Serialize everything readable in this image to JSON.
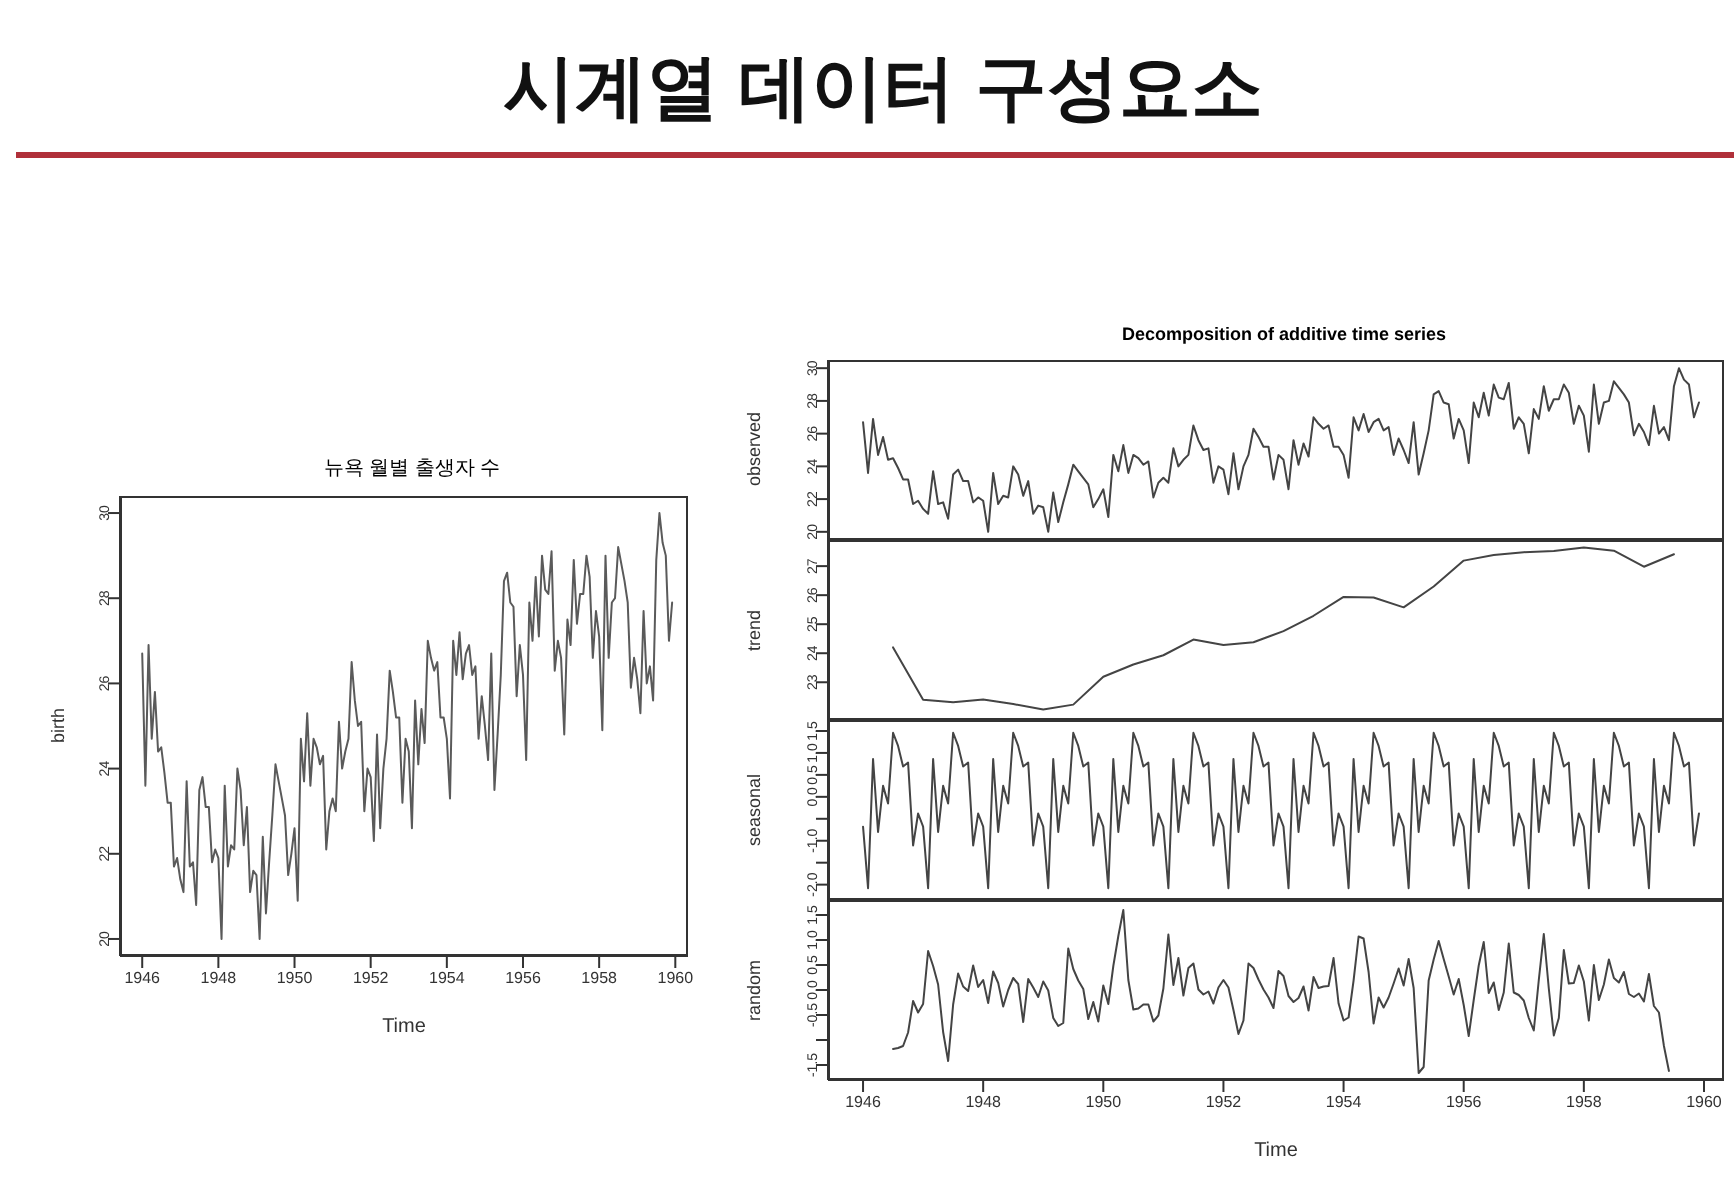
{
  "chart_data": [
    {
      "type": "other",
      "title": "시계열 데이터 구성요소"
    },
    {
      "type": "line",
      "title": "뉴욕 월별 출생자 수",
      "xlabel": "Time",
      "ylabel": "birth",
      "color": "#5a5a5a",
      "xlim": [
        "1945-06",
        "1960-05"
      ],
      "xticks": [
        "1946",
        "1948",
        "1950",
        "1952",
        "1954",
        "1956",
        "1958",
        "1960"
      ],
      "ylim": [
        19.6,
        30.4
      ],
      "yticks": [
        20,
        22,
        24,
        26,
        28,
        30
      ],
      "x": [
        "1946-01",
        "1946-02",
        "1946-03",
        "1946-04",
        "1946-05",
        "1946-06",
        "1946-07",
        "1946-08",
        "1946-09",
        "1946-10",
        "1946-11",
        "1946-12",
        "1947-01",
        "1947-02",
        "1947-03",
        "1947-04",
        "1947-05",
        "1947-06",
        "1947-07",
        "1947-08",
        "1947-09",
        "1947-10",
        "1947-11",
        "1947-12",
        "1948-01",
        "1948-02",
        "1948-03",
        "1948-04",
        "1948-05",
        "1948-06",
        "1948-07",
        "1948-08",
        "1948-09",
        "1948-10",
        "1948-11",
        "1948-12",
        "1949-01",
        "1949-02",
        "1949-03",
        "1949-04",
        "1949-05",
        "1949-06",
        "1949-07",
        "1949-08",
        "1949-09",
        "1949-10",
        "1949-11",
        "1949-12",
        "1950-01",
        "1950-02",
        "1950-03",
        "1950-04",
        "1950-05",
        "1950-06",
        "1950-07",
        "1950-08",
        "1950-09",
        "1950-10",
        "1950-11",
        "1950-12",
        "1951-01",
        "1951-02",
        "1951-03",
        "1951-04",
        "1951-05",
        "1951-06",
        "1951-07",
        "1951-08",
        "1951-09",
        "1951-10",
        "1951-11",
        "1951-12",
        "1952-01",
        "1952-02",
        "1952-03",
        "1952-04",
        "1952-05",
        "1952-06",
        "1952-07",
        "1952-08",
        "1952-09",
        "1952-10",
        "1952-11",
        "1952-12",
        "1953-01",
        "1953-02",
        "1953-03",
        "1953-04",
        "1953-05",
        "1953-06",
        "1953-07",
        "1953-08",
        "1953-09",
        "1953-10",
        "1953-11",
        "1953-12",
        "1954-01",
        "1954-02",
        "1954-03",
        "1954-04",
        "1954-05",
        "1954-06",
        "1954-07",
        "1954-08",
        "1954-09",
        "1954-10",
        "1954-11",
        "1954-12",
        "1955-01",
        "1955-02",
        "1955-03",
        "1955-04",
        "1955-05",
        "1955-06",
        "1955-07",
        "1955-08",
        "1955-09",
        "1955-10",
        "1955-11",
        "1955-12",
        "1956-01",
        "1956-02",
        "1956-03",
        "1956-04",
        "1956-05",
        "1956-06",
        "1956-07",
        "1956-08",
        "1956-09",
        "1956-10",
        "1956-11",
        "1956-12",
        "1957-01",
        "1957-02",
        "1957-03",
        "1957-04",
        "1957-05",
        "1957-06",
        "1957-07",
        "1957-08",
        "1957-09",
        "1957-10",
        "1957-11",
        "1957-12",
        "1958-01",
        "1958-02",
        "1958-03",
        "1958-04",
        "1958-05",
        "1958-06",
        "1958-07",
        "1958-08",
        "1958-09",
        "1958-10",
        "1958-11",
        "1958-12",
        "1959-01",
        "1959-02",
        "1959-03",
        "1959-04",
        "1959-05",
        "1959-06",
        "1959-07",
        "1959-08",
        "1959-09",
        "1959-10",
        "1959-11",
        "1959-12"
      ],
      "values": [
        26.7,
        23.6,
        26.9,
        24.7,
        25.8,
        24.4,
        24.5,
        23.9,
        23.2,
        23.2,
        21.7,
        21.9,
        21.4,
        21.1,
        23.7,
        21.7,
        21.8,
        20.8,
        23.5,
        23.8,
        23.1,
        23.1,
        21.8,
        22.1,
        21.9,
        20.0,
        23.6,
        21.7,
        22.2,
        22.1,
        24.0,
        23.5,
        22.2,
        23.1,
        21.1,
        21.6,
        21.5,
        20.0,
        22.4,
        20.6,
        21.8,
        22.9,
        24.1,
        23.7,
        23.3,
        22.9,
        21.5,
        22.0,
        22.6,
        20.9,
        24.7,
        23.7,
        25.3,
        23.6,
        24.7,
        24.5,
        24.1,
        24.3,
        22.1,
        23.0,
        23.3,
        23.0,
        25.1,
        24.0,
        24.4,
        24.7,
        26.5,
        25.6,
        25.0,
        25.1,
        23.0,
        24.0,
        23.8,
        22.3,
        24.8,
        22.6,
        24.0,
        24.7,
        26.3,
        25.8,
        25.2,
        25.2,
        23.2,
        24.7,
        24.4,
        22.6,
        25.6,
        24.1,
        25.4,
        24.6,
        27.0,
        26.6,
        26.3,
        26.5,
        25.2,
        25.2,
        24.7,
        23.3,
        27.0,
        26.2,
        27.2,
        26.1,
        26.7,
        26.9,
        26.2,
        26.4,
        24.7,
        25.7,
        25.0,
        24.2,
        26.7,
        23.5,
        24.8,
        26.2,
        28.4,
        28.6,
        27.9,
        27.8,
        25.7,
        26.9,
        26.2,
        24.2,
        27.9,
        27.0,
        28.5,
        27.1,
        29.0,
        28.2,
        28.1,
        29.1,
        26.3,
        27.0,
        26.6,
        24.8,
        27.5,
        26.9,
        28.9,
        27.4,
        28.1,
        28.1,
        29.0,
        28.5,
        26.6,
        27.7,
        27.1,
        24.9,
        29.0,
        26.6,
        27.9,
        28.0,
        29.2,
        28.8,
        28.4,
        27.9,
        25.9,
        26.6,
        26.1,
        25.3,
        27.7,
        26.0,
        26.4,
        25.6,
        28.9,
        30.0,
        29.3,
        29.0,
        27.0,
        27.9
      ]
    },
    {
      "type": "line",
      "title": "Decomposition of additive time series",
      "ylabel": "observed",
      "color": "#444444",
      "tick_labels": "y",
      "xlim": [
        "1945-06",
        "1960-05"
      ],
      "ylim": [
        19.5,
        30.5
      ],
      "yticks": [
        20,
        22,
        24,
        26,
        28,
        30
      ],
      "x": [
        "1946-01",
        "1946-02",
        "1946-03",
        "1946-04",
        "1946-05",
        "1946-06",
        "1946-07",
        "1946-08",
        "1946-09",
        "1946-10",
        "1946-11",
        "1946-12",
        "1947-01",
        "1947-02",
        "1947-03",
        "1947-04",
        "1947-05",
        "1947-06",
        "1947-07",
        "1947-08",
        "1947-09",
        "1947-10",
        "1947-11",
        "1947-12",
        "1948-01",
        "1948-02",
        "1948-03",
        "1948-04",
        "1948-05",
        "1948-06",
        "1948-07",
        "1948-08",
        "1948-09",
        "1948-10",
        "1948-11",
        "1948-12",
        "1949-01",
        "1949-02",
        "1949-03",
        "1949-04",
        "1949-05",
        "1949-06",
        "1949-07",
        "1949-08",
        "1949-09",
        "1949-10",
        "1949-11",
        "1949-12",
        "1950-01",
        "1950-02",
        "1950-03",
        "1950-04",
        "1950-05",
        "1950-06",
        "1950-07",
        "1950-08",
        "1950-09",
        "1950-10",
        "1950-11",
        "1950-12",
        "1951-01",
        "1951-02",
        "1951-03",
        "1951-04",
        "1951-05",
        "1951-06",
        "1951-07",
        "1951-08",
        "1951-09",
        "1951-10",
        "1951-11",
        "1951-12",
        "1952-01",
        "1952-02",
        "1952-03",
        "1952-04",
        "1952-05",
        "1952-06",
        "1952-07",
        "1952-08",
        "1952-09",
        "1952-10",
        "1952-11",
        "1952-12",
        "1953-01",
        "1953-02",
        "1953-03",
        "1953-04",
        "1953-05",
        "1953-06",
        "1953-07",
        "1953-08",
        "1953-09",
        "1953-10",
        "1953-11",
        "1953-12",
        "1954-01",
        "1954-02",
        "1954-03",
        "1954-04",
        "1954-05",
        "1954-06",
        "1954-07",
        "1954-08",
        "1954-09",
        "1954-10",
        "1954-11",
        "1954-12",
        "1955-01",
        "1955-02",
        "1955-03",
        "1955-04",
        "1955-05",
        "1955-06",
        "1955-07",
        "1955-08",
        "1955-09",
        "1955-10",
        "1955-11",
        "1955-12",
        "1956-01",
        "1956-02",
        "1956-03",
        "1956-04",
        "1956-05",
        "1956-06",
        "1956-07",
        "1956-08",
        "1956-09",
        "1956-10",
        "1956-11",
        "1956-12",
        "1957-01",
        "1957-02",
        "1957-03",
        "1957-04",
        "1957-05",
        "1957-06",
        "1957-07",
        "1957-08",
        "1957-09",
        "1957-10",
        "1957-11",
        "1957-12",
        "1958-01",
        "1958-02",
        "1958-03",
        "1958-04",
        "1958-05",
        "1958-06",
        "1958-07",
        "1958-08",
        "1958-09",
        "1958-10",
        "1958-11",
        "1958-12",
        "1959-01",
        "1959-02",
        "1959-03",
        "1959-04",
        "1959-05",
        "1959-06",
        "1959-07",
        "1959-08",
        "1959-09",
        "1959-10",
        "1959-11",
        "1959-12"
      ],
      "values": [
        26.7,
        23.6,
        26.9,
        24.7,
        25.8,
        24.4,
        24.5,
        23.9,
        23.2,
        23.2,
        21.7,
        21.9,
        21.4,
        21.1,
        23.7,
        21.7,
        21.8,
        20.8,
        23.5,
        23.8,
        23.1,
        23.1,
        21.8,
        22.1,
        21.9,
        20.0,
        23.6,
        21.7,
        22.2,
        22.1,
        24.0,
        23.5,
        22.2,
        23.1,
        21.1,
        21.6,
        21.5,
        20.0,
        22.4,
        20.6,
        21.8,
        22.9,
        24.1,
        23.7,
        23.3,
        22.9,
        21.5,
        22.0,
        22.6,
        20.9,
        24.7,
        23.7,
        25.3,
        23.6,
        24.7,
        24.5,
        24.1,
        24.3,
        22.1,
        23.0,
        23.3,
        23.0,
        25.1,
        24.0,
        24.4,
        24.7,
        26.5,
        25.6,
        25.0,
        25.1,
        23.0,
        24.0,
        23.8,
        22.3,
        24.8,
        22.6,
        24.0,
        24.7,
        26.3,
        25.8,
        25.2,
        25.2,
        23.2,
        24.7,
        24.4,
        22.6,
        25.6,
        24.1,
        25.4,
        24.6,
        27.0,
        26.6,
        26.3,
        26.5,
        25.2,
        25.2,
        24.7,
        23.3,
        27.0,
        26.2,
        27.2,
        26.1,
        26.7,
        26.9,
        26.2,
        26.4,
        24.7,
        25.7,
        25.0,
        24.2,
        26.7,
        23.5,
        24.8,
        26.2,
        28.4,
        28.6,
        27.9,
        27.8,
        25.7,
        26.9,
        26.2,
        24.2,
        27.9,
        27.0,
        28.5,
        27.1,
        29.0,
        28.2,
        28.1,
        29.1,
        26.3,
        27.0,
        26.6,
        24.8,
        27.5,
        26.9,
        28.9,
        27.4,
        28.1,
        28.1,
        29.0,
        28.5,
        26.6,
        27.7,
        27.1,
        24.9,
        29.0,
        26.6,
        27.9,
        28.0,
        29.2,
        28.8,
        28.4,
        27.9,
        25.9,
        26.6,
        26.1,
        25.3,
        27.7,
        26.0,
        26.4,
        25.6,
        28.9,
        30.0,
        29.3,
        29.0,
        27.0,
        27.9
      ]
    },
    {
      "type": "line",
      "ylabel": "trend",
      "color": "#444444",
      "tick_labels": "y",
      "xlim": [
        "1945-06",
        "1960-05"
      ],
      "ylim": [
        21.7,
        27.9
      ],
      "yticks": [
        23,
        24,
        25,
        26,
        27
      ],
      "x": [
        "1946-07",
        "1947-01",
        "1947-07",
        "1948-01",
        "1948-07",
        "1949-01",
        "1949-07",
        "1950-01",
        "1950-07",
        "1951-01",
        "1951-07",
        "1952-01",
        "1952-07",
        "1953-01",
        "1953-07",
        "1954-01",
        "1954-07",
        "1955-01",
        "1955-07",
        "1956-01",
        "1956-07",
        "1957-01",
        "1957-07",
        "1958-01",
        "1958-07",
        "1959-01",
        "1959-07"
      ],
      "values": [
        24.2,
        22.4,
        22.31,
        22.41,
        22.25,
        22.06,
        22.23,
        23.19,
        23.61,
        23.93,
        24.47,
        24.28,
        24.38,
        24.76,
        25.29,
        25.94,
        25.92,
        25.58,
        26.3,
        27.19,
        27.38,
        27.48,
        27.52,
        27.64,
        27.53,
        26.98,
        27.41
      ]
    },
    {
      "type": "line",
      "ylabel": "seasonal",
      "color": "#444444",
      "tick_labels": "y",
      "xlim": [
        "1945-06",
        "1960-05"
      ],
      "ylim": [
        -2.35,
        1.75
      ],
      "yticks": [
        {
          "value": -2.0,
          "label": "-2.0"
        },
        {
          "value": -1.5,
          "label": null
        },
        {
          "value": -1.0,
          "label": "-1.0"
        },
        {
          "value": -0.5,
          "label": null
        },
        {
          "value": 0.0,
          "label": "0.0"
        },
        {
          "value": 0.5,
          "label": "0.5"
        },
        {
          "value": 1.0,
          "label": "1.0"
        },
        {
          "value": 1.5,
          "label": "1.5"
        }
      ],
      "x": [
        "1946-01",
        "1946-02",
        "1946-03",
        "1946-04",
        "1946-05",
        "1946-06",
        "1946-07",
        "1946-08",
        "1946-09",
        "1946-10",
        "1946-11",
        "1946-12",
        "1947-01",
        "1947-02",
        "1947-03",
        "1947-04",
        "1947-05",
        "1947-06",
        "1947-07",
        "1947-08",
        "1947-09",
        "1947-10",
        "1947-11",
        "1947-12",
        "1948-01",
        "1948-02",
        "1948-03",
        "1948-04",
        "1948-05",
        "1948-06",
        "1948-07",
        "1948-08",
        "1948-09",
        "1948-10",
        "1948-11",
        "1948-12",
        "1949-01",
        "1949-02",
        "1949-03",
        "1949-04",
        "1949-05",
        "1949-06",
        "1949-07",
        "1949-08",
        "1949-09",
        "1949-10",
        "1949-11",
        "1949-12",
        "1950-01",
        "1950-02",
        "1950-03",
        "1950-04",
        "1950-05",
        "1950-06",
        "1950-07",
        "1950-08",
        "1950-09",
        "1950-10",
        "1950-11",
        "1950-12",
        "1951-01",
        "1951-02",
        "1951-03",
        "1951-04",
        "1951-05",
        "1951-06",
        "1951-07",
        "1951-08",
        "1951-09",
        "1951-10",
        "1951-11",
        "1951-12",
        "1952-01",
        "1952-02",
        "1952-03",
        "1952-04",
        "1952-05",
        "1952-06",
        "1952-07",
        "1952-08",
        "1952-09",
        "1952-10",
        "1952-11",
        "1952-12",
        "1953-01",
        "1953-02",
        "1953-03",
        "1953-04",
        "1953-05",
        "1953-06",
        "1953-07",
        "1953-08",
        "1953-09",
        "1953-10",
        "1953-11",
        "1953-12",
        "1954-01",
        "1954-02",
        "1954-03",
        "1954-04",
        "1954-05",
        "1954-06",
        "1954-07",
        "1954-08",
        "1954-09",
        "1954-10",
        "1954-11",
        "1954-12",
        "1955-01",
        "1955-02",
        "1955-03",
        "1955-04",
        "1955-05",
        "1955-06",
        "1955-07",
        "1955-08",
        "1955-09",
        "1955-10",
        "1955-11",
        "1955-12",
        "1956-01",
        "1956-02",
        "1956-03",
        "1956-04",
        "1956-05",
        "1956-06",
        "1956-07",
        "1956-08",
        "1956-09",
        "1956-10",
        "1956-11",
        "1956-12",
        "1957-01",
        "1957-02",
        "1957-03",
        "1957-04",
        "1957-05",
        "1957-06",
        "1957-07",
        "1957-08",
        "1957-09",
        "1957-10",
        "1957-11",
        "1957-12",
        "1958-01",
        "1958-02",
        "1958-03",
        "1958-04",
        "1958-05",
        "1958-06",
        "1958-07",
        "1958-08",
        "1958-09",
        "1958-10",
        "1958-11",
        "1958-12",
        "1959-01",
        "1959-02",
        "1959-03",
        "1959-04",
        "1959-05",
        "1959-06",
        "1959-07",
        "1959-08",
        "1959-09",
        "1959-10",
        "1959-11",
        "1959-12"
      ],
      "values": [
        -0.68,
        -2.08,
        0.86,
        -0.8,
        0.25,
        -0.15,
        1.46,
        1.16,
        0.69,
        0.78,
        -1.11,
        -0.38,
        -0.68,
        -2.08,
        0.86,
        -0.8,
        0.25,
        -0.15,
        1.46,
        1.16,
        0.69,
        0.78,
        -1.11,
        -0.38,
        -0.68,
        -2.08,
        0.86,
        -0.8,
        0.25,
        -0.15,
        1.46,
        1.16,
        0.69,
        0.78,
        -1.11,
        -0.38,
        -0.68,
        -2.08,
        0.86,
        -0.8,
        0.25,
        -0.15,
        1.46,
        1.16,
        0.69,
        0.78,
        -1.11,
        -0.38,
        -0.68,
        -2.08,
        0.86,
        -0.8,
        0.25,
        -0.15,
        1.46,
        1.16,
        0.69,
        0.78,
        -1.11,
        -0.38,
        -0.68,
        -2.08,
        0.86,
        -0.8,
        0.25,
        -0.15,
        1.46,
        1.16,
        0.69,
        0.78,
        -1.11,
        -0.38,
        -0.68,
        -2.08,
        0.86,
        -0.8,
        0.25,
        -0.15,
        1.46,
        1.16,
        0.69,
        0.78,
        -1.11,
        -0.38,
        -0.68,
        -2.08,
        0.86,
        -0.8,
        0.25,
        -0.15,
        1.46,
        1.16,
        0.69,
        0.78,
        -1.11,
        -0.38,
        -0.68,
        -2.08,
        0.86,
        -0.8,
        0.25,
        -0.15,
        1.46,
        1.16,
        0.69,
        0.78,
        -1.11,
        -0.38,
        -0.68,
        -2.08,
        0.86,
        -0.8,
        0.25,
        -0.15,
        1.46,
        1.16,
        0.69,
        0.78,
        -1.11,
        -0.38,
        -0.68,
        -2.08,
        0.86,
        -0.8,
        0.25,
        -0.15,
        1.46,
        1.16,
        0.69,
        0.78,
        -1.11,
        -0.38,
        -0.68,
        -2.08,
        0.86,
        -0.8,
        0.25,
        -0.15,
        1.46,
        1.16,
        0.69,
        0.78,
        -1.11,
        -0.38,
        -0.68,
        -2.08,
        0.86,
        -0.8,
        0.25,
        -0.15,
        1.46,
        1.16,
        0.69,
        0.78,
        -1.11,
        -0.38,
        -0.68,
        -2.08,
        0.86,
        -0.8,
        0.25,
        -0.15,
        1.46,
        1.16,
        0.69,
        0.78,
        -1.11,
        -0.38
      ]
    },
    {
      "type": "line",
      "ylabel": "random",
      "xlabel": "Time",
      "color": "#444444",
      "xlim": [
        "1945-06",
        "1960-05"
      ],
      "xticks": [
        "1946",
        "1948",
        "1950",
        "1952",
        "1954",
        "1956",
        "1958",
        "1960"
      ],
      "ylim": [
        -1.8,
        1.8
      ],
      "yticks": [
        {
          "value": -1.5,
          "label": "-1.5"
        },
        {
          "value": -1.0,
          "label": null
        },
        {
          "value": -0.5,
          "label": "-0.5"
        },
        {
          "value": 0.0,
          "label": "0.0"
        },
        {
          "value": 0.5,
          "label": "0.5"
        },
        {
          "value": 1.0,
          "label": "1.0"
        },
        {
          "value": 1.5,
          "label": "1.5"
        }
      ],
      "x": [
        "1946-07",
        "1946-08",
        "1946-09",
        "1946-10",
        "1946-11",
        "1946-12",
        "1947-01",
        "1947-02",
        "1947-03",
        "1947-04",
        "1947-05",
        "1947-06",
        "1947-07",
        "1947-08",
        "1947-09",
        "1947-10",
        "1947-11",
        "1947-12",
        "1948-01",
        "1948-02",
        "1948-03",
        "1948-04",
        "1948-05",
        "1948-06",
        "1948-07",
        "1948-08",
        "1948-09",
        "1948-10",
        "1948-11",
        "1948-12",
        "1949-01",
        "1949-02",
        "1949-03",
        "1949-04",
        "1949-05",
        "1949-06",
        "1949-07",
        "1949-08",
        "1949-09",
        "1949-10",
        "1949-11",
        "1949-12",
        "1950-01",
        "1950-02",
        "1950-03",
        "1950-04",
        "1950-05",
        "1950-06",
        "1950-07",
        "1950-08",
        "1950-09",
        "1950-10",
        "1950-11",
        "1950-12",
        "1951-01",
        "1951-02",
        "1951-03",
        "1951-04",
        "1951-05",
        "1951-06",
        "1951-07",
        "1951-08",
        "1951-09",
        "1951-10",
        "1951-11",
        "1951-12",
        "1952-01",
        "1952-02",
        "1952-03",
        "1952-04",
        "1952-05",
        "1952-06",
        "1952-07",
        "1952-08",
        "1952-09",
        "1952-10",
        "1952-11",
        "1952-12",
        "1953-01",
        "1953-02",
        "1953-03",
        "1953-04",
        "1953-05",
        "1953-06",
        "1953-07",
        "1953-08",
        "1953-09",
        "1953-10",
        "1953-11",
        "1953-12",
        "1954-01",
        "1954-02",
        "1954-03",
        "1954-04",
        "1954-05",
        "1954-06",
        "1954-07",
        "1954-08",
        "1954-09",
        "1954-10",
        "1954-11",
        "1954-12",
        "1955-01",
        "1955-02",
        "1955-03",
        "1955-04",
        "1955-05",
        "1955-06",
        "1955-07",
        "1955-08",
        "1955-09",
        "1955-10",
        "1955-11",
        "1955-12",
        "1956-01",
        "1956-02",
        "1956-03",
        "1956-04",
        "1956-05",
        "1956-06",
        "1956-07",
        "1956-08",
        "1956-09",
        "1956-10",
        "1956-11",
        "1956-12",
        "1957-01",
        "1957-02",
        "1957-03",
        "1957-04",
        "1957-05",
        "1957-06",
        "1957-07",
        "1957-08",
        "1957-09",
        "1957-10",
        "1957-11",
        "1957-12",
        "1958-01",
        "1958-02",
        "1958-03",
        "1958-04",
        "1958-05",
        "1958-06",
        "1958-07",
        "1958-08",
        "1958-09",
        "1958-10",
        "1958-11",
        "1958-12",
        "1959-01",
        "1959-02",
        "1959-03",
        "1959-04",
        "1959-05",
        "1959-06"
      ],
      "values": [
        -1.18,
        -1.16,
        -1.12,
        -0.85,
        -0.22,
        -0.45,
        -0.28,
        0.78,
        0.48,
        0.11,
        -0.84,
        -1.42,
        -0.29,
        0.33,
        0.07,
        -0.02,
        0.49,
        0.06,
        0.2,
        -0.26,
        0.37,
        0.14,
        -0.33,
        0.0,
        0.24,
        0.12,
        -0.64,
        0.22,
        0.05,
        -0.14,
        0.17,
        -0.01,
        -0.56,
        -0.72,
        -0.66,
        0.83,
        0.42,
        0.19,
        0.02,
        -0.58,
        -0.24,
        -0.63,
        0.09,
        -0.28,
        0.48,
        1.08,
        1.6,
        0.2,
        -0.39,
        -0.37,
        -0.29,
        -0.29,
        -0.63,
        -0.51,
        0.03,
        1.11,
        0.1,
        0.64,
        -0.11,
        0.44,
        0.53,
        0.01,
        -0.09,
        -0.03,
        -0.27,
        0.05,
        0.2,
        0.05,
        -0.4,
        -0.88,
        -0.61,
        0.53,
        0.44,
        0.21,
        0.01,
        -0.15,
        -0.36,
        0.38,
        0.28,
        -0.12,
        -0.24,
        -0.16,
        0.07,
        -0.41,
        0.26,
        0.04,
        0.07,
        0.08,
        0.64,
        -0.27,
        -0.61,
        -0.55,
        0.19,
        1.07,
        1.03,
        0.36,
        -0.67,
        -0.15,
        -0.35,
        -0.15,
        0.13,
        0.43,
        0.09,
        0.62,
        0.04,
        -1.66,
        -1.54,
        0.19,
        0.61,
        0.98,
        0.62,
        0.27,
        -0.09,
        0.22,
        -0.3,
        -0.92,
        -0.2,
        0.49,
        0.96,
        -0.06,
        0.15,
        -0.4,
        -0.05,
        0.93,
        -0.05,
        -0.1,
        -0.21,
        -0.56,
        -0.81,
        0.2,
        1.12,
        0.03,
        -0.91,
        -0.56,
        0.8,
        0.13,
        0.14,
        0.49,
        0.17,
        -0.61,
        0.5,
        -0.2,
        0.11,
        0.61,
        0.24,
        0.15,
        0.36,
        -0.08,
        -0.14,
        -0.07,
        -0.23,
        0.32,
        -0.32,
        -0.45,
        -1.12,
        -1.62
      ]
    }
  ]
}
